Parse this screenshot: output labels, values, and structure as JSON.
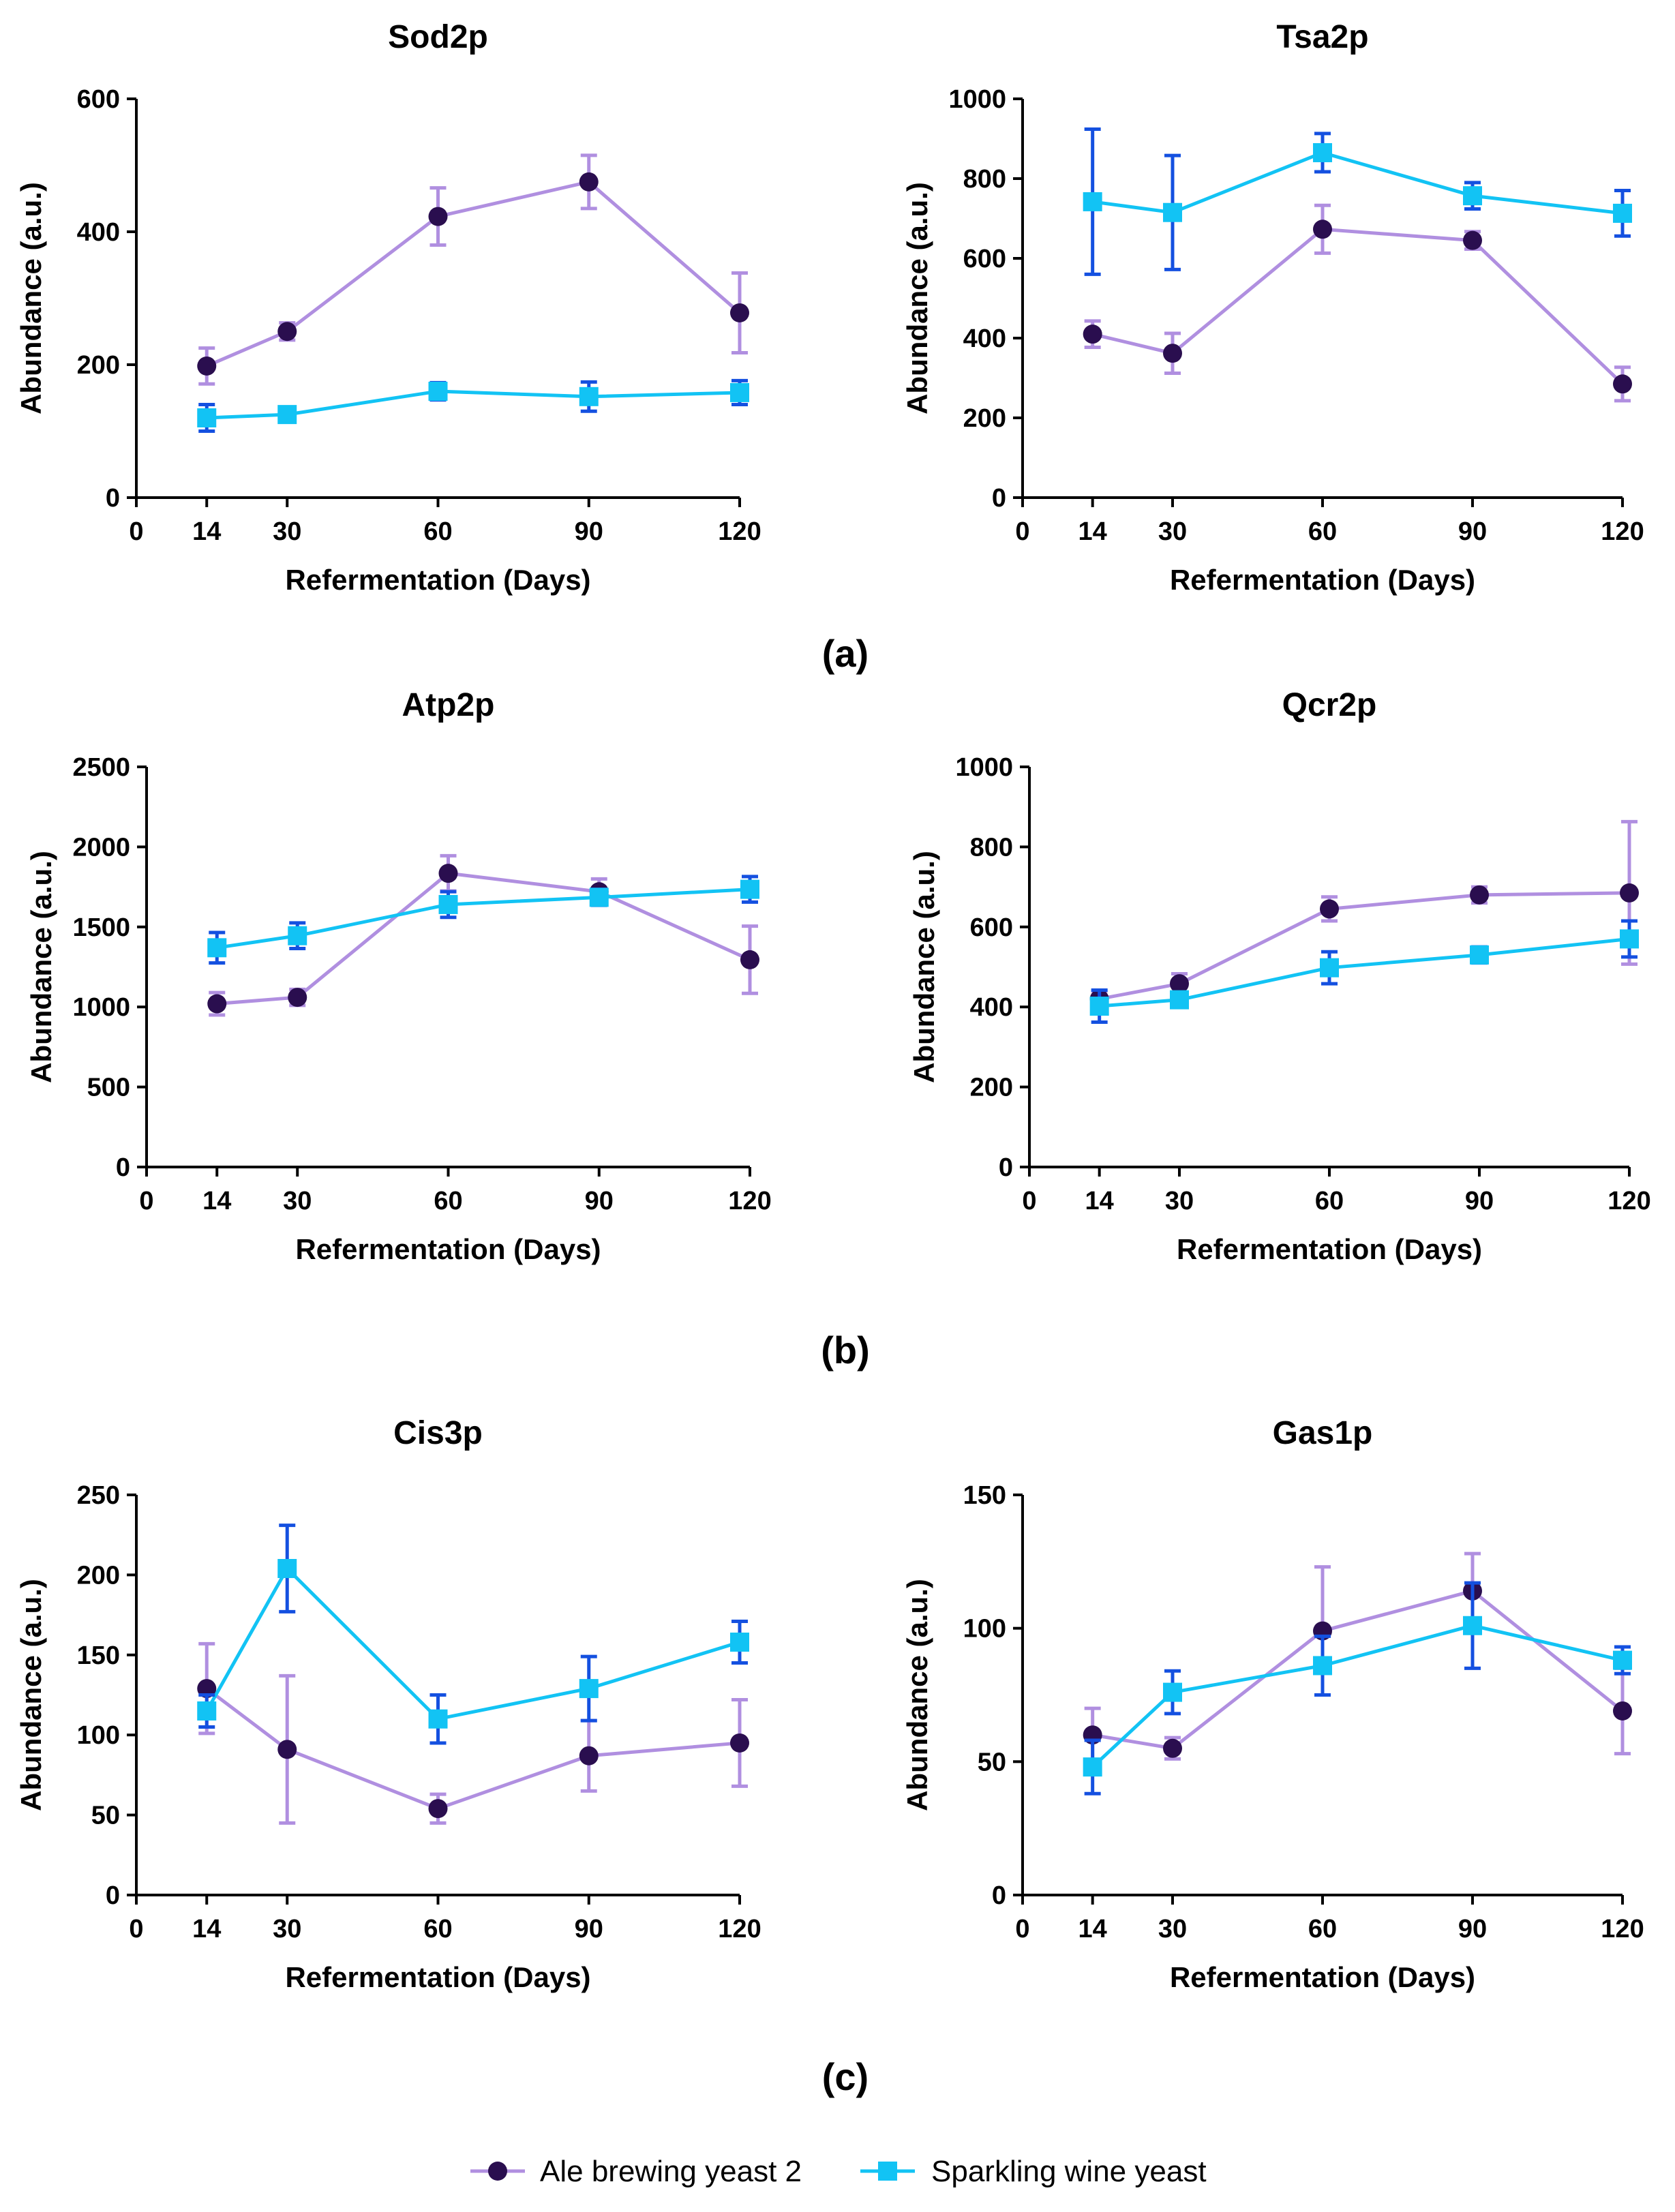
{
  "colors": {
    "ale": "#b08fe0",
    "ale_marker": "#2a0e4f",
    "sparkling": "#12c3f4",
    "sparkling_err": "#1450e0",
    "axis": "#000000"
  },
  "panels": [
    "(a)",
    "(b)",
    "(c)"
  ],
  "legend": {
    "items": [
      {
        "label": "Ale brewing yeast 2",
        "icon": "circle-marker-icon"
      },
      {
        "label": "Sparkling wine yeast",
        "icon": "square-marker-icon"
      }
    ]
  },
  "chart_data": [
    {
      "type": "line",
      "title": "Sod2p",
      "xlabel": "Refermentation (Days)",
      "ylabel": "Abundance (a.u.)",
      "x": [
        14,
        30,
        60,
        90,
        120
      ],
      "xticks": [
        0,
        14,
        30,
        60,
        90,
        120
      ],
      "xlim": [
        0,
        120
      ],
      "ylim": [
        0,
        600
      ],
      "yticks": [
        0,
        200,
        400,
        600
      ],
      "series": [
        {
          "name": "Ale brewing yeast 2",
          "values": [
            198,
            250,
            423,
            475,
            278
          ],
          "errors": [
            27,
            13,
            43,
            40,
            60
          ]
        },
        {
          "name": "Sparkling wine yeast",
          "values": [
            120,
            125,
            160,
            152,
            158
          ],
          "errors": [
            20,
            7,
            13,
            22,
            18
          ]
        }
      ]
    },
    {
      "type": "line",
      "title": "Tsa2p",
      "xlabel": "Refermentation (Days)",
      "ylabel": "Abundance (a.u.)",
      "x": [
        14,
        30,
        60,
        90,
        120
      ],
      "xticks": [
        0,
        14,
        30,
        60,
        90,
        120
      ],
      "xlim": [
        0,
        120
      ],
      "ylim": [
        0,
        1000
      ],
      "yticks": [
        0,
        200,
        400,
        600,
        800,
        1000
      ],
      "series": [
        {
          "name": "Ale brewing yeast 2",
          "values": [
            410,
            362,
            673,
            645,
            285
          ],
          "errors": [
            33,
            50,
            60,
            22,
            42
          ]
        },
        {
          "name": "Sparkling wine yeast",
          "values": [
            742,
            715,
            865,
            757,
            713
          ],
          "errors": [
            182,
            143,
            48,
            33,
            57
          ]
        }
      ]
    },
    {
      "type": "line",
      "title": "Atp2p",
      "xlabel": "Refermentation (Days)",
      "ylabel": "Abundance (a.u.)",
      "x": [
        14,
        30,
        60,
        90,
        120
      ],
      "xticks": [
        0,
        14,
        30,
        60,
        90,
        120
      ],
      "xlim": [
        0,
        120
      ],
      "ylim": [
        0,
        2500
      ],
      "yticks": [
        0,
        500,
        1000,
        1500,
        2000,
        2500
      ],
      "series": [
        {
          "name": "Ale brewing yeast 2",
          "values": [
            1020,
            1060,
            1835,
            1720,
            1295
          ],
          "errors": [
            70,
            50,
            110,
            80,
            210
          ]
        },
        {
          "name": "Sparkling wine yeast",
          "values": [
            1370,
            1445,
            1640,
            1685,
            1735
          ],
          "errors": [
            95,
            80,
            80,
            50,
            80
          ]
        }
      ]
    },
    {
      "type": "line",
      "title": "Qcr2p",
      "xlabel": "Refermentation (Days)",
      "ylabel": "Abundance (a.u.)",
      "x": [
        14,
        30,
        60,
        90,
        120
      ],
      "xticks": [
        0,
        14,
        30,
        60,
        90,
        120
      ],
      "xlim": [
        0,
        120
      ],
      "ylim": [
        0,
        1000
      ],
      "yticks": [
        0,
        200,
        400,
        600,
        800,
        1000
      ],
      "series": [
        {
          "name": "Ale brewing yeast 2",
          "values": [
            420,
            458,
            645,
            680,
            685
          ],
          "errors": [
            20,
            25,
            30,
            20,
            178
          ]
        },
        {
          "name": "Sparkling wine yeast",
          "values": [
            402,
            418,
            498,
            530,
            570
          ],
          "errors": [
            40,
            15,
            40,
            20,
            45
          ]
        }
      ]
    },
    {
      "type": "line",
      "title": "Cis3p",
      "xlabel": "Refermentation (Days)",
      "ylabel": "Abundance (a.u.)",
      "x": [
        14,
        30,
        60,
        90,
        120
      ],
      "xticks": [
        0,
        14,
        30,
        60,
        90,
        120
      ],
      "xlim": [
        0,
        120
      ],
      "ylim": [
        0,
        250
      ],
      "yticks": [
        0,
        50,
        100,
        150,
        200,
        250
      ],
      "series": [
        {
          "name": "Ale brewing yeast 2",
          "values": [
            129,
            91,
            54,
            87,
            95
          ],
          "errors": [
            28,
            46,
            9,
            22,
            27
          ]
        },
        {
          "name": "Sparkling wine yeast",
          "values": [
            115,
            204,
            110,
            129,
            158
          ],
          "errors": [
            10,
            27,
            15,
            20,
            13
          ]
        }
      ]
    },
    {
      "type": "line",
      "title": "Gas1p",
      "xlabel": "Refermentation (Days)",
      "ylabel": "Abundance (a.u.)",
      "x": [
        14,
        30,
        60,
        90,
        120
      ],
      "xticks": [
        0,
        14,
        30,
        60,
        90,
        120
      ],
      "xlim": [
        0,
        120
      ],
      "ylim": [
        0,
        150
      ],
      "yticks": [
        0,
        50,
        100,
        150
      ],
      "series": [
        {
          "name": "Ale brewing yeast 2",
          "values": [
            60,
            55,
            99,
            114,
            69
          ],
          "errors": [
            10,
            4,
            24,
            14,
            16
          ]
        },
        {
          "name": "Sparkling wine yeast",
          "values": [
            48,
            76,
            86,
            101,
            88
          ],
          "errors": [
            10,
            8,
            11,
            16,
            5
          ]
        }
      ]
    }
  ]
}
